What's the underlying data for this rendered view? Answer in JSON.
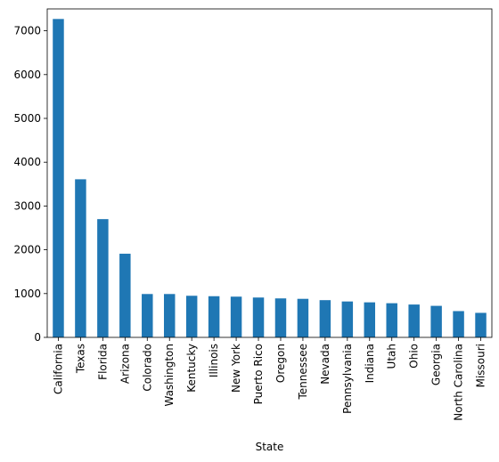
{
  "chart_data": {
    "type": "bar",
    "xlabel": "State",
    "ylabel": "",
    "ylim": [
      0,
      7500
    ],
    "yticks": [
      0,
      1000,
      2000,
      3000,
      4000,
      5000,
      6000,
      7000
    ],
    "grid": false,
    "legend": "none",
    "bar_color": "#1f77b4",
    "categories": [
      "California",
      "Texas",
      "Florida",
      "Arizona",
      "Colorado",
      "Washington",
      "Kentucky",
      "Illinois",
      "New York",
      "Puerto Rico",
      "Oregon",
      "Tennessee",
      "Nevada",
      "Pennsylvania",
      "Indiana",
      "Utah",
      "Ohio",
      "Georgia",
      "North Carolina",
      "Missouri"
    ],
    "values": [
      7270,
      3610,
      2700,
      1910,
      990,
      990,
      950,
      940,
      930,
      910,
      890,
      880,
      850,
      820,
      800,
      780,
      750,
      720,
      600,
      560
    ]
  }
}
